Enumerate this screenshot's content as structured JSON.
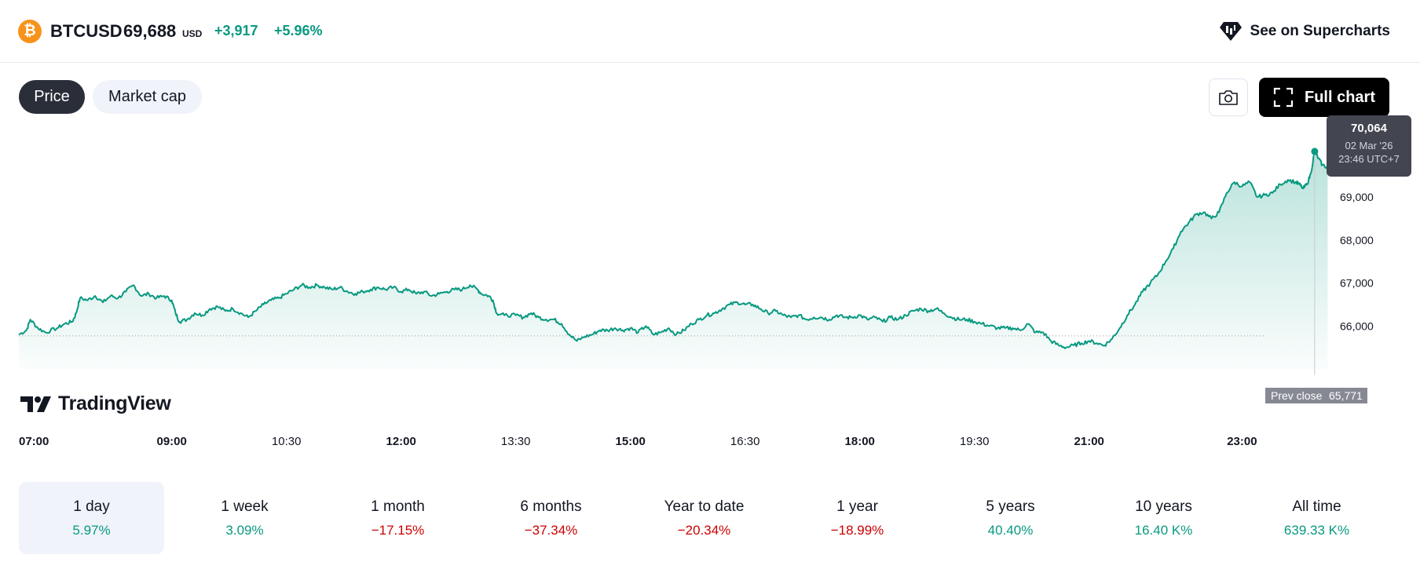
{
  "header": {
    "coin_icon_glyph": "₿",
    "coin_color": "#f7931a",
    "symbol": "BTCUSD",
    "price": "69,688",
    "currency": "USD",
    "change_abs": "+3,917",
    "change_pct": "+5.96%",
    "positive_color": "#089981",
    "supercharts_icon": "supercharts-icon",
    "supercharts_label": "See on Supercharts"
  },
  "toolbar": {
    "tab_price": "Price",
    "tab_market_cap": "Market cap",
    "active_tab": "Price",
    "camera_icon": "camera-icon",
    "fullscreen_icon": "fullscreen-icon",
    "full_chart_label": "Full chart"
  },
  "tooltip": {
    "value": "70,064",
    "date": "02 Mar '26",
    "time": "23:46 UTC+7"
  },
  "prev_close": {
    "label": "Prev close",
    "value": "65,771"
  },
  "watermark": {
    "text": "TradingView"
  },
  "chart_data": {
    "type": "area",
    "line_color": "#089981",
    "y_ticks": [
      66000,
      67000,
      68000,
      69000
    ],
    "y_tick_labels": [
      "66,000",
      "67,000",
      "68,000",
      "69,000"
    ],
    "ylim": [
      65000,
      70300
    ],
    "x_ticks": [
      {
        "label": "07:00",
        "hour": 7.0,
        "bold": true
      },
      {
        "label": "09:00",
        "hour": 9.0,
        "bold": true
      },
      {
        "label": "10:30",
        "hour": 10.5,
        "bold": false
      },
      {
        "label": "12:00",
        "hour": 12.0,
        "bold": true
      },
      {
        "label": "13:30",
        "hour": 13.5,
        "bold": false
      },
      {
        "label": "15:00",
        "hour": 15.0,
        "bold": true
      },
      {
        "label": "16:30",
        "hour": 16.5,
        "bold": false
      },
      {
        "label": "18:00",
        "hour": 18.0,
        "bold": true
      },
      {
        "label": "19:30",
        "hour": 19.5,
        "bold": false
      },
      {
        "label": "21:00",
        "hour": 21.0,
        "bold": true
      },
      {
        "label": "23:00",
        "hour": 23.0,
        "bold": true
      }
    ],
    "xlim": [
      7.0,
      23.9
    ],
    "prev_close": 65771,
    "grid": false,
    "series": [
      {
        "points": [
          [
            7.0,
            65800
          ],
          [
            7.1,
            65900
          ],
          [
            7.15,
            66150
          ],
          [
            7.25,
            65950
          ],
          [
            7.35,
            65850
          ],
          [
            7.5,
            65950
          ],
          [
            7.6,
            66050
          ],
          [
            7.7,
            66100
          ],
          [
            7.75,
            66300
          ],
          [
            7.8,
            66650
          ],
          [
            7.9,
            66600
          ],
          [
            8.0,
            66700
          ],
          [
            8.1,
            66550
          ],
          [
            8.2,
            66700
          ],
          [
            8.3,
            66650
          ],
          [
            8.4,
            66800
          ],
          [
            8.5,
            66950
          ],
          [
            8.6,
            66700
          ],
          [
            8.7,
            66750
          ],
          [
            8.8,
            66650
          ],
          [
            8.9,
            66700
          ],
          [
            9.0,
            66600
          ],
          [
            9.05,
            66300
          ],
          [
            9.1,
            66100
          ],
          [
            9.2,
            66150
          ],
          [
            9.3,
            66300
          ],
          [
            9.4,
            66250
          ],
          [
            9.5,
            66400
          ],
          [
            9.6,
            66450
          ],
          [
            9.7,
            66350
          ],
          [
            9.8,
            66400
          ],
          [
            9.9,
            66300
          ],
          [
            10.0,
            66200
          ],
          [
            10.1,
            66350
          ],
          [
            10.2,
            66500
          ],
          [
            10.3,
            66600
          ],
          [
            10.4,
            66650
          ],
          [
            10.5,
            66750
          ],
          [
            10.6,
            66850
          ],
          [
            10.7,
            66950
          ],
          [
            10.8,
            66900
          ],
          [
            10.9,
            66950
          ],
          [
            11.0,
            66900
          ],
          [
            11.1,
            66850
          ],
          [
            11.2,
            66900
          ],
          [
            11.3,
            66800
          ],
          [
            11.4,
            66750
          ],
          [
            11.5,
            66800
          ],
          [
            11.6,
            66850
          ],
          [
            11.7,
            66900
          ],
          [
            11.8,
            66850
          ],
          [
            11.9,
            66900
          ],
          [
            12.0,
            66800
          ],
          [
            12.1,
            66850
          ],
          [
            12.2,
            66750
          ],
          [
            12.3,
            66800
          ],
          [
            12.4,
            66700
          ],
          [
            12.5,
            66750
          ],
          [
            12.6,
            66800
          ],
          [
            12.7,
            66850
          ],
          [
            12.8,
            66850
          ],
          [
            12.9,
            66950
          ],
          [
            13.0,
            66850
          ],
          [
            13.05,
            66750
          ],
          [
            13.15,
            66700
          ],
          [
            13.2,
            66600
          ],
          [
            13.25,
            66300
          ],
          [
            13.35,
            66250
          ],
          [
            13.5,
            66250
          ],
          [
            13.6,
            66200
          ],
          [
            13.7,
            66300
          ],
          [
            13.8,
            66200
          ],
          [
            13.9,
            66150
          ],
          [
            14.0,
            66150
          ],
          [
            14.1,
            66050
          ],
          [
            14.2,
            65800
          ],
          [
            14.3,
            65650
          ],
          [
            14.4,
            65750
          ],
          [
            14.5,
            65800
          ],
          [
            14.6,
            65900
          ],
          [
            14.7,
            65900
          ],
          [
            14.8,
            65950
          ],
          [
            14.9,
            65900
          ],
          [
            15.0,
            65950
          ],
          [
            15.1,
            65850
          ],
          [
            15.2,
            66000
          ],
          [
            15.3,
            65800
          ],
          [
            15.4,
            65850
          ],
          [
            15.5,
            65950
          ],
          [
            15.6,
            65800
          ],
          [
            15.7,
            65900
          ],
          [
            15.8,
            66050
          ],
          [
            15.9,
            66150
          ],
          [
            16.0,
            66250
          ],
          [
            16.1,
            66300
          ],
          [
            16.2,
            66400
          ],
          [
            16.3,
            66500
          ],
          [
            16.4,
            66550
          ],
          [
            16.5,
            66500
          ],
          [
            16.6,
            66500
          ],
          [
            16.7,
            66400
          ],
          [
            16.8,
            66300
          ],
          [
            16.9,
            66350
          ],
          [
            17.0,
            66250
          ],
          [
            17.1,
            66200
          ],
          [
            17.2,
            66250
          ],
          [
            17.3,
            66150
          ],
          [
            17.4,
            66200
          ],
          [
            17.5,
            66200
          ],
          [
            17.6,
            66150
          ],
          [
            17.7,
            66250
          ],
          [
            17.8,
            66200
          ],
          [
            17.9,
            66200
          ],
          [
            18.0,
            66250
          ],
          [
            18.1,
            66150
          ],
          [
            18.2,
            66200
          ],
          [
            18.3,
            66100
          ],
          [
            18.4,
            66200
          ],
          [
            18.5,
            66150
          ],
          [
            18.6,
            66250
          ],
          [
            18.7,
            66350
          ],
          [
            18.8,
            66400
          ],
          [
            18.9,
            66350
          ],
          [
            19.0,
            66400
          ],
          [
            19.1,
            66300
          ],
          [
            19.2,
            66200
          ],
          [
            19.3,
            66150
          ],
          [
            19.4,
            66150
          ],
          [
            19.5,
            66100
          ],
          [
            19.6,
            66050
          ],
          [
            19.7,
            66000
          ],
          [
            19.8,
            65950
          ],
          [
            19.9,
            65950
          ],
          [
            20.0,
            65950
          ],
          [
            20.1,
            65900
          ],
          [
            20.2,
            66050
          ],
          [
            20.3,
            65850
          ],
          [
            20.4,
            65850
          ],
          [
            20.5,
            65650
          ],
          [
            20.6,
            65550
          ],
          [
            20.7,
            65500
          ],
          [
            20.8,
            65550
          ],
          [
            20.9,
            65600
          ],
          [
            21.0,
            65650
          ],
          [
            21.1,
            65600
          ],
          [
            21.2,
            65550
          ],
          [
            21.3,
            65700
          ],
          [
            21.4,
            65950
          ],
          [
            21.5,
            66250
          ],
          [
            21.6,
            66500
          ],
          [
            21.7,
            66800
          ],
          [
            21.8,
            67000
          ],
          [
            21.9,
            67200
          ],
          [
            22.0,
            67500
          ],
          [
            22.1,
            67800
          ],
          [
            22.2,
            68200
          ],
          [
            22.3,
            68400
          ],
          [
            22.4,
            68600
          ],
          [
            22.5,
            68650
          ],
          [
            22.6,
            68500
          ],
          [
            22.7,
            68650
          ],
          [
            22.8,
            69100
          ],
          [
            22.9,
            69350
          ],
          [
            23.0,
            69250
          ],
          [
            23.1,
            69350
          ],
          [
            23.2,
            69000
          ],
          [
            23.3,
            69050
          ],
          [
            23.4,
            69100
          ],
          [
            23.5,
            69300
          ],
          [
            23.6,
            69400
          ],
          [
            23.7,
            69350
          ],
          [
            23.75,
            69300
          ],
          [
            23.8,
            69200
          ],
          [
            23.85,
            69300
          ],
          [
            23.9,
            69550
          ],
          [
            23.95,
            70064
          ],
          [
            24.0,
            69900
          ],
          [
            24.05,
            69750
          ],
          [
            24.12,
            69688
          ]
        ]
      }
    ]
  },
  "periods": [
    {
      "label": "1 day",
      "value": "5.97%",
      "sign": "pos"
    },
    {
      "label": "1 week",
      "value": "3.09%",
      "sign": "pos"
    },
    {
      "label": "1 month",
      "value": "−17.15%",
      "sign": "neg"
    },
    {
      "label": "6 months",
      "value": "−37.34%",
      "sign": "neg"
    },
    {
      "label": "Year to date",
      "value": "−20.34%",
      "sign": "neg"
    },
    {
      "label": "1 year",
      "value": "−18.99%",
      "sign": "neg"
    },
    {
      "label": "5 years",
      "value": "40.40%",
      "sign": "pos"
    },
    {
      "label": "10 years",
      "value": "16.40 K%",
      "sign": "pos"
    },
    {
      "label": "All time",
      "value": "639.33 K%",
      "sign": "pos"
    }
  ],
  "active_period": "1 day"
}
